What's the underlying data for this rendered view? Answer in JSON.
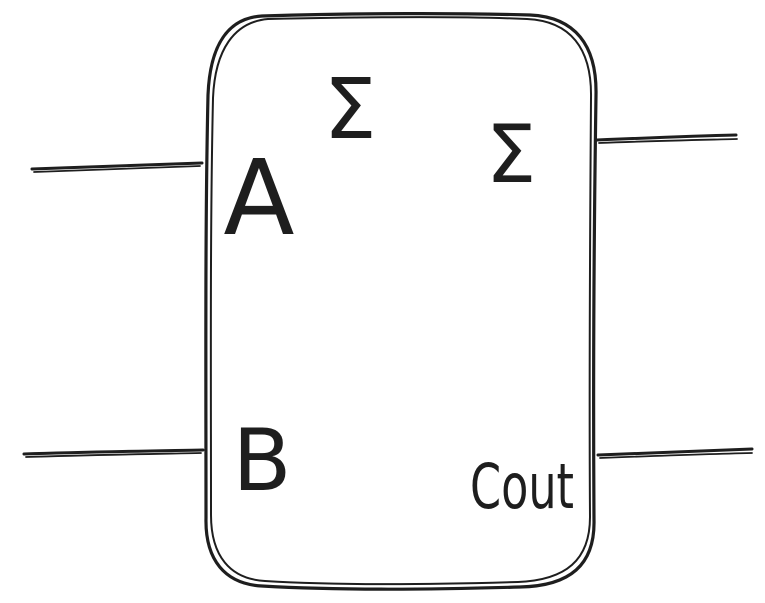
{
  "diagram": {
    "title_symbol": "Σ",
    "block": {
      "inputs": [
        {
          "label": "A"
        },
        {
          "label": "B"
        }
      ],
      "outputs": [
        {
          "label": "Σ"
        },
        {
          "label": "Cout"
        }
      ]
    }
  }
}
